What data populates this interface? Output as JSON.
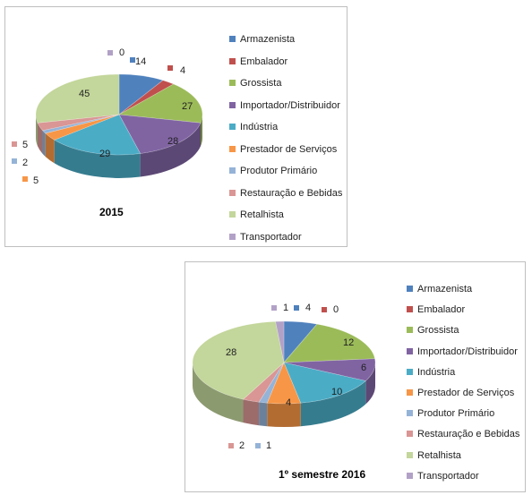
{
  "colors": {
    "Armazenista": "#4f81bd",
    "Embalador": "#c0504d",
    "Grossista": "#9bbb59",
    "Importador/Distribuidor": "#8064a2",
    "Indústria": "#4bacc6",
    "Prestador de Serviços": "#f79646",
    "Produtor Primário": "#95b3d7",
    "Restauração e Bebidas": "#d99694",
    "Retalhista": "#c3d69b",
    "Transportador": "#b2a1c7"
  },
  "chart_data": [
    {
      "type": "pie",
      "title": "2015",
      "categories": [
        "Armazenista",
        "Embalador",
        "Grossista",
        "Importador/Distribuidor",
        "Indústria",
        "Prestador de Serviços",
        "Produtor Primário",
        "Restauração e Bebidas",
        "Retalhista",
        "Transportador"
      ],
      "values": [
        14,
        4,
        27,
        28,
        29,
        5,
        2,
        5,
        45,
        0
      ],
      "style": "3d",
      "legend_position": "right"
    },
    {
      "type": "pie",
      "title": "1º semestre 2016",
      "categories": [
        "Armazenista",
        "Embalador",
        "Grossista",
        "Importador/Distribuidor",
        "Indústria",
        "Prestador de Serviços",
        "Produtor Primário",
        "Restauração e Bebidas",
        "Retalhista",
        "Transportador"
      ],
      "values": [
        4,
        0,
        12,
        6,
        10,
        4,
        1,
        2,
        28,
        1
      ],
      "style": "3d",
      "legend_position": "right"
    }
  ]
}
